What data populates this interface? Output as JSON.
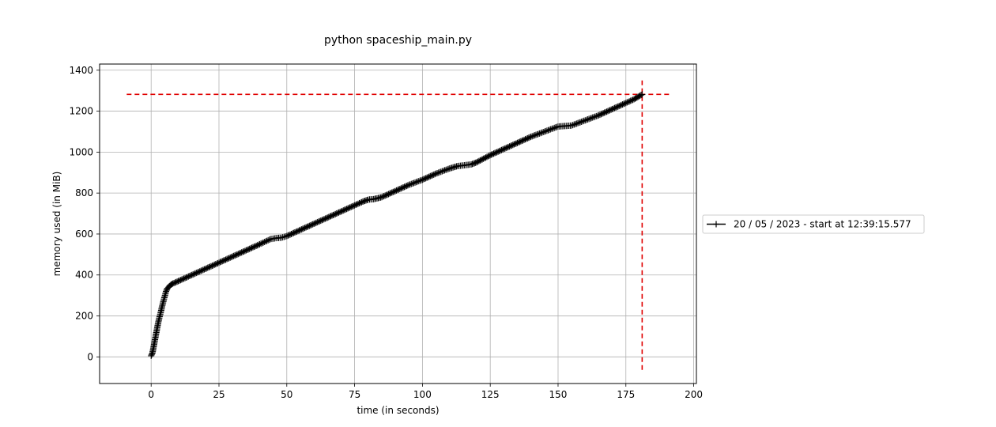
{
  "chart_data": {
    "type": "line",
    "title": "python spaceship_main.py",
    "xlabel": "time (in seconds)",
    "ylabel": "memory used (in MiB)",
    "xlim": [
      -19,
      201
    ],
    "ylim": [
      -130,
      1430
    ],
    "xticks": [
      0,
      25,
      50,
      75,
      100,
      125,
      150,
      175,
      200
    ],
    "yticks": [
      0,
      200,
      400,
      600,
      800,
      1000,
      1200,
      1400
    ],
    "grid": true,
    "legend_position": "center-right, outside",
    "series": [
      {
        "name": "20 / 05 / 2023 - start at 12:39:15.577",
        "color": "#000000",
        "marker": "plus",
        "x": [
          0,
          0.5,
          1,
          1.5,
          2,
          2.5,
          3,
          3.5,
          4,
          4.5,
          5,
          5.5,
          6,
          7,
          8,
          10,
          15,
          20,
          25,
          30,
          35,
          40,
          44,
          46,
          48,
          50,
          55,
          60,
          65,
          70,
          75,
          78,
          80,
          82,
          85,
          90,
          95,
          100,
          105,
          110,
          113,
          115,
          118,
          120,
          125,
          130,
          135,
          140,
          145,
          150,
          153,
          155,
          160,
          165,
          170,
          175,
          178,
          181
        ],
        "y": [
          5,
          20,
          55,
          90,
          125,
          160,
          190,
          215,
          245,
          270,
          295,
          320,
          335,
          350,
          358,
          370,
          400,
          430,
          460,
          490,
          520,
          550,
          575,
          580,
          582,
          590,
          620,
          650,
          680,
          710,
          740,
          758,
          768,
          770,
          780,
          810,
          840,
          865,
          895,
          920,
          932,
          935,
          940,
          950,
          985,
          1015,
          1045,
          1075,
          1100,
          1125,
          1128,
          1130,
          1155,
          1180,
          1210,
          1240,
          1258,
          1282
        ]
      }
    ],
    "annotations": {
      "max_memory_hline": 1282,
      "max_time_vline": 181,
      "color": "#e00000"
    }
  }
}
